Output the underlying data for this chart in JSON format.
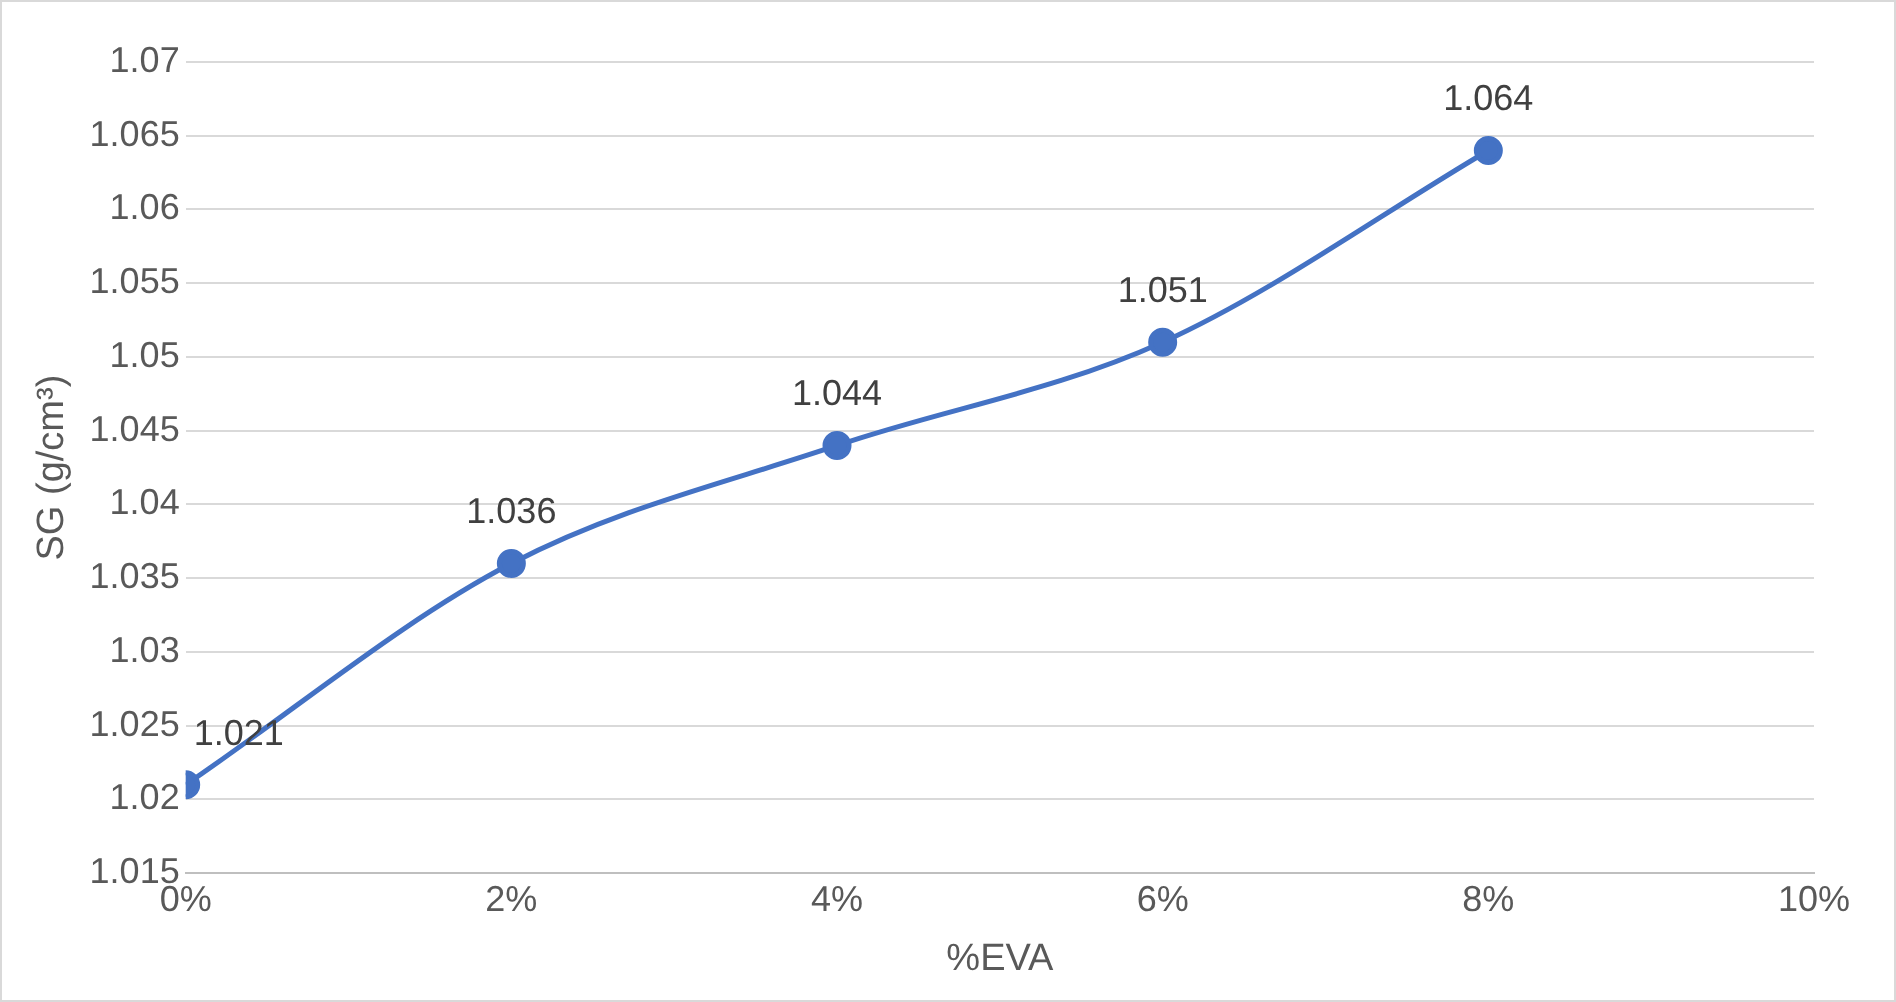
{
  "chart_data": {
    "type": "line",
    "xlabel": "%EVA",
    "ylabel": "SG (g/cm³)",
    "x": [
      0,
      2,
      4,
      6,
      8
    ],
    "series": [
      {
        "color": "#4472c4",
        "values": [
          1.021,
          1.036,
          1.044,
          1.051,
          1.064
        ]
      }
    ],
    "xlim": [
      0,
      10
    ],
    "xticks": [
      {
        "value": 0,
        "label": "0%"
      },
      {
        "value": 2,
        "label": "2%"
      },
      {
        "value": 4,
        "label": "4%"
      },
      {
        "value": 6,
        "label": "6%"
      },
      {
        "value": 8,
        "label": "8%"
      },
      {
        "value": 10,
        "label": "10%"
      }
    ],
    "ylim": [
      1.015,
      1.07
    ],
    "yticks": [
      1.015,
      1.02,
      1.025,
      1.03,
      1.035,
      1.04,
      1.045,
      1.05,
      1.055,
      1.06,
      1.065,
      1.07
    ],
    "grid": "y",
    "legend": false,
    "marker": "circle",
    "line_style": "solid",
    "data_labels": true
  }
}
